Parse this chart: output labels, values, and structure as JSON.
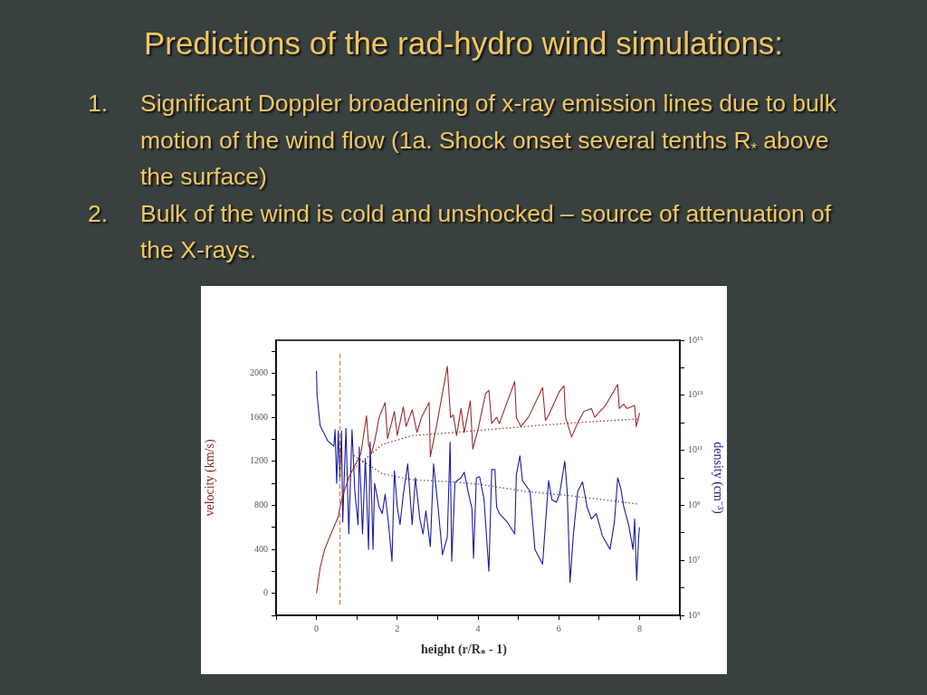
{
  "chart_data": {
    "type": "line",
    "title": "Predictions of the rad-hydro wind simulations:",
    "annotations": [
      "1. Significant Doppler broadening of x-ray emission lines due to bulk motion of the wind flow (1a. Shock onset several tenths R$_{*}$ above the surface)",
      "2. Bulk of the wind is cold and unshocked – source of attenuation of the X-rays."
    ],
    "xlabel": "height (r/R$_{*}$ - 1)",
    "ylabel": "velocity (km/s)",
    "y2label": "density (cm⁻³)",
    "xlim": [
      -1,
      9
    ],
    "xticks": [
      {
        "value": -1,
        "label": null
      },
      0,
      {
        "value": 1,
        "label": null
      },
      2,
      {
        "value": 3,
        "label": null
      },
      4,
      {
        "value": 5,
        "label": null
      },
      6,
      {
        "value": 7,
        "label": null
      },
      8,
      {
        "value": 9,
        "label": null
      }
    ],
    "ylim": [
      -200,
      2300
    ],
    "yticks": [
      {
        "value": -200,
        "label": null
      },
      0,
      {
        "value": 200,
        "label": null
      },
      400,
      {
        "value": 600,
        "label": null
      },
      800,
      {
        "value": 1000,
        "label": null
      },
      1200,
      {
        "value": 1400,
        "label": null
      },
      1600,
      {
        "value": 1800,
        "label": null
      },
      2000,
      {
        "value": 2200,
        "label": null
      }
    ],
    "y2lim": [
      100000.0,
      1000000000000000.0
    ],
    "y2ticks": [
      {
        "value": 100000.0,
        "label": "10⁵"
      },
      {
        "value": 1000000.0,
        "label": null
      },
      {
        "value": 10000000.0,
        "label": "10⁷"
      },
      {
        "value": 100000000.0,
        "label": null
      },
      {
        "value": 1000000000.0,
        "label": "10⁹"
      },
      {
        "value": 10000000000.0,
        "label": null
      },
      {
        "value": 100000000000.0,
        "label": "10¹¹"
      },
      {
        "value": 1000000000000.0,
        "label": null
      },
      {
        "value": 10000000000000.0,
        "label": "10¹³"
      },
      {
        "value": 100000000000000.0,
        "label": null
      },
      {
        "value": 1000000000000000.0,
        "label": "10¹⁵"
      }
    ],
    "log": "y2",
    "grid": false,
    "legend": false,
    "marker": "none",
    "line_style": "solid",
    "ref_lines": [
      {
        "axis": "x",
        "value": 0.58,
        "label": null,
        "color": "#e07020",
        "line_style": "dashed"
      }
    ],
    "series": [
      {
        "color": "#9a2c2c",
        "x": [
          0,
          0.09,
          0.2,
          0.35,
          0.54,
          0.58,
          0.65,
          0.8,
          0.95,
          1.1,
          1.24,
          1.29,
          1.36,
          1.44,
          1.55,
          1.7,
          1.76,
          1.93,
          2.0,
          2.15,
          2.22,
          2.37,
          2.49,
          2.6,
          2.79,
          2.82,
          2.97,
          3.24,
          3.32,
          3.39,
          3.47,
          3.58,
          3.66,
          3.81,
          3.87,
          4.0,
          4.19,
          4.27,
          4.34,
          4.46,
          4.53,
          4.91,
          4.95,
          5.06,
          5.25,
          5.6,
          5.67,
          5.75,
          6.01,
          6.13,
          6.17,
          6.32,
          6.47,
          6.62,
          6.81,
          6.89,
          7.16,
          7.46,
          7.5,
          7.61,
          7.69,
          7.88,
          7.92,
          7.98,
          8.0
        ],
        "values": [
          0,
          232,
          396,
          533,
          697,
          779,
          888,
          1052,
          1161,
          1270,
          1612,
          1352,
          1270,
          1380,
          1598,
          1735,
          1407,
          1653,
          1434,
          1694,
          1516,
          1667,
          1462,
          1598,
          1735,
          1243,
          1516,
          2063,
          1598,
          1620,
          1434,
          1680,
          1462,
          1748,
          1311,
          1489,
          1817,
          1844,
          1544,
          1600,
          1544,
          1926,
          1598,
          1516,
          1600,
          1871,
          1571,
          1620,
          1830,
          1885,
          1598,
          1421,
          1550,
          1653,
          1680,
          1600,
          1708,
          1899,
          1680,
          1720,
          1680,
          1708,
          1516,
          1600,
          1639
        ]
      },
      {
        "color": "#9a3a3a",
        "line_style": "dotted",
        "x": [
          0.92,
          1.63,
          2.37,
          3.35,
          4,
          5.18,
          6.32,
          8
        ],
        "values": [
          1130,
          1352,
          1434,
          1460,
          1480,
          1516,
          1549,
          1585
        ]
      },
      {
        "color": "#1c1c9c",
        "axis": "y2",
        "x": [
          0,
          0.015,
          0.09,
          0.28,
          0.43,
          0.46,
          0.5,
          0.54,
          0.58,
          0.62,
          0.65,
          0.73,
          0.8,
          0.88,
          0.95,
          1.03,
          1.06,
          1.14,
          1.21,
          1.29,
          1.33,
          1.4,
          1.44,
          1.55,
          1.63,
          1.7,
          1.78,
          1.87,
          1.93,
          2.0,
          2.07,
          2.15,
          2.26,
          2.37,
          2.45,
          2.56,
          2.64,
          2.71,
          2.82,
          2.9,
          3.01,
          3.12,
          3.24,
          3.31,
          3.35,
          3.43,
          3.58,
          3.66,
          3.77,
          3.85,
          3.89,
          3.96,
          4.04,
          4.15,
          4.27,
          4.34,
          4.42,
          4.46,
          4.53,
          4.72,
          4.91,
          4.95,
          5.04,
          5.1,
          5.29,
          5.41,
          5.6,
          5.67,
          5.75,
          5.83,
          5.94,
          6.02,
          6.15,
          6.21,
          6.28,
          6.36,
          6.47,
          6.59,
          6.7,
          6.81,
          6.93,
          7.08,
          7.27,
          7.38,
          7.46,
          7.54,
          7.61,
          7.73,
          7.84,
          7.88,
          7.93,
          7.98,
          8.0
        ],
        "values": [
          76000000000000.0,
          10000000000000.0,
          790000000000.0,
          220000000000.0,
          140000000000.0,
          560000000000.0,
          6300000000.0,
          500000000000.0,
          7900000000.0,
          500000000000.0,
          250000000.0,
          630000000000.0,
          91000000.0,
          560000000000.0,
          3200000000.0,
          200000000.0,
          130000000000.0,
          91000000.0,
          50000000000.0,
          25000000.0,
          200000000000.0,
          25000000.0,
          6300000000.0,
          890000000.0,
          500000000.0,
          2500000000.0,
          250000000.0,
          9300000.0,
          18000000000.0,
          890000000.0,
          200000000.0,
          2500000000.0,
          32000000000.0,
          200000000.0,
          10000000000.0,
          320000000.0,
          91000000.0,
          630000000.0,
          32000000.0,
          32000000000.0,
          890000000.0,
          16000000.0,
          71000000.0,
          200000000000.0,
          9300000.0,
          6900000000.0,
          10000000000.0,
          16000000000.0,
          2500000000.0,
          790000000.0,
          12000000.0,
          10000000000.0,
          11000000000.0,
          1600000000.0,
          4000000.0,
          20000000000.0,
          20000000000.0,
          890000000.0,
          500000000.0,
          250000000.0,
          91000000.0,
          13000000000.0,
          63000000000.0,
          7900000000.0,
          3200000000.0,
          25000000.0,
          7200000.0,
          200000000.0,
          7900000000.0,
          1600000000.0,
          1300000000.0,
          2500000000.0,
          40000000000.0,
          3200000000.0,
          1600000.0,
          79000000.0,
          3200000000.0,
          7100000000.0,
          890000000.0,
          320000000.0,
          500000000.0,
          79000000.0,
          25000000.0,
          250000000.0,
          10000000000.0,
          4000000000.0,
          890000000.0,
          200000000.0,
          25000000.0,
          320000000.0,
          1900000.0,
          71000000.0,
          160000000.0
        ]
      },
      {
        "color": "#5a5a80",
        "axis": "y2",
        "line_style": "dotted",
        "x": [
          0.92,
          1.63,
          2.37,
          3.35,
          4,
          5.18,
          6.32,
          8
        ],
        "values": [
          66000000000.0,
          14000000000.0,
          8500000000.0,
          7100000000.0,
          5900000000.0,
          3200000000.0,
          2200000000.0,
          1100000000.0
        ]
      }
    ]
  }
}
